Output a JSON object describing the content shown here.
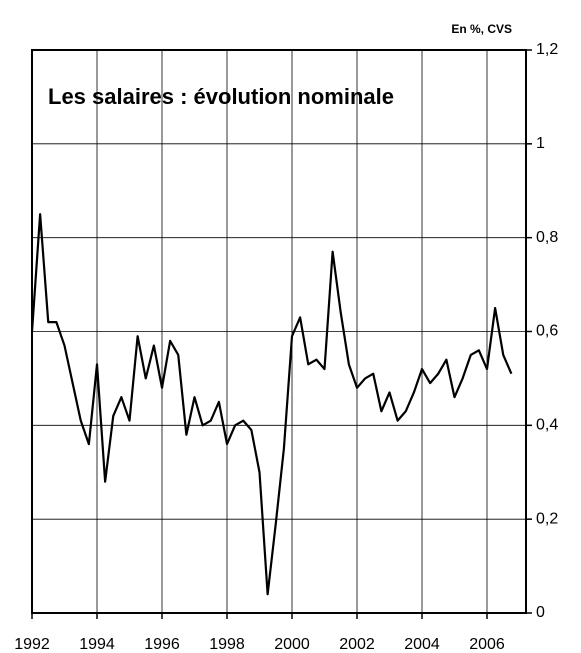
{
  "chart_data": {
    "type": "line",
    "title": "Les salaires : évolution nominale",
    "unit_label": "En %, CVS",
    "x": [
      1992,
      1992.25,
      1992.5,
      1992.75,
      1993,
      1993.25,
      1993.5,
      1993.75,
      1994,
      1994.25,
      1994.5,
      1994.75,
      1995,
      1995.25,
      1995.5,
      1995.75,
      1996,
      1996.25,
      1996.5,
      1996.75,
      1997,
      1997.25,
      1997.5,
      1997.75,
      1998,
      1998.25,
      1998.5,
      1998.75,
      1999,
      1999.25,
      1999.5,
      1999.75,
      2000,
      2000.25,
      2000.5,
      2000.75,
      2001,
      2001.25,
      2001.5,
      2001.75,
      2002,
      2002.25,
      2002.5,
      2002.75,
      2003,
      2003.25,
      2003.5,
      2003.75,
      2004,
      2004.25,
      2004.5,
      2004.75,
      2005,
      2005.25,
      2005.5,
      2005.75,
      2006,
      2006.25,
      2006.5,
      2006.75
    ],
    "series": [
      {
        "color": "#000000",
        "values": [
          0.6,
          0.85,
          0.62,
          0.62,
          0.57,
          0.49,
          0.41,
          0.36,
          0.53,
          0.28,
          0.42,
          0.46,
          0.41,
          0.59,
          0.5,
          0.57,
          0.48,
          0.58,
          0.55,
          0.38,
          0.46,
          0.4,
          0.41,
          0.45,
          0.36,
          0.4,
          0.41,
          0.39,
          0.3,
          0.04,
          0.19,
          0.35,
          0.59,
          0.63,
          0.53,
          0.54,
          0.52,
          0.77,
          0.64,
          0.53,
          0.48,
          0.5,
          0.51,
          0.43,
          0.47,
          0.41,
          0.43,
          0.47,
          0.52,
          0.49,
          0.51,
          0.54,
          0.46,
          0.5,
          0.55,
          0.56,
          0.52,
          0.65,
          0.55,
          0.51
        ]
      }
    ],
    "xlim": [
      1992,
      2007.2
    ],
    "xticks": [
      1992,
      1994,
      1996,
      1998,
      2000,
      2002,
      2004,
      2006
    ],
    "ylim": [
      0,
      1.2
    ],
    "yticks": [
      0,
      {
        "value": 0.2,
        "label": "0,2"
      },
      {
        "value": 0.4,
        "label": "0,4"
      },
      {
        "value": 0.6,
        "label": "0,6"
      },
      {
        "value": 0.8,
        "label": "0,8"
      },
      1,
      {
        "value": 1.2,
        "label": "1,2"
      }
    ],
    "grid": true,
    "y_axis_side": "right"
  }
}
